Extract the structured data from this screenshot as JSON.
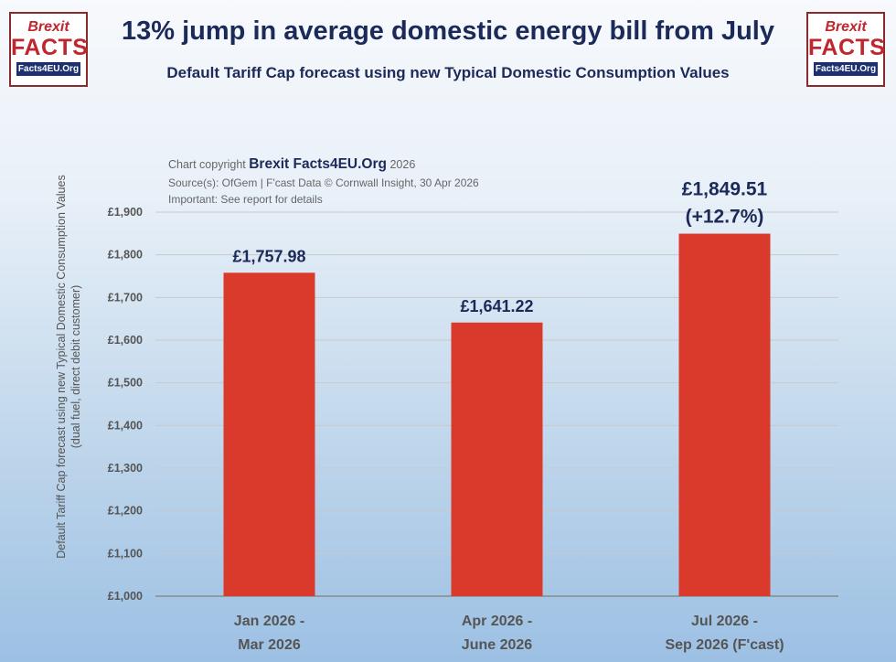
{
  "header": {
    "title": "13% jump in average domestic energy bill from July",
    "subtitle": "Default Tariff Cap forecast using new Typical Domestic Consumption Values"
  },
  "logo": {
    "line1": "Brexit",
    "line2": "FACTS",
    "line3": "Facts4EU.Org"
  },
  "credits": {
    "line1_prefix": "Chart copyright ",
    "line1_brand": "Brexit Facts4EU.Org",
    "line1_suffix": " 2026",
    "line2": "Source(s): OfGem | F'cast Data © Cornwall Insight, 30 Apr 2026",
    "line3": "Important: See report for details"
  },
  "colors": {
    "bar": "#d93a2b",
    "text": "#1c2a5a",
    "brand_red": "#c0262d"
  },
  "chart_data": {
    "type": "bar",
    "title": "13% jump in average domestic energy bill from July",
    "ylabel_line1": "Default Tariff Cap forecast using new Typical Domestic Consumption Values",
    "ylabel_line2": "(dual fuel, direct debit customer)",
    "ylim": [
      1000,
      1900
    ],
    "yticks": [
      1000,
      1100,
      1200,
      1300,
      1400,
      1500,
      1600,
      1700,
      1800,
      1900
    ],
    "ytick_labels": [
      "£1,000",
      "£1,100",
      "£1,200",
      "£1,300",
      "£1,400",
      "£1,500",
      "£1,600",
      "£1,700",
      "£1,800",
      "£1,900"
    ],
    "categories": [
      [
        "Jan 2026 -",
        "Mar 2026"
      ],
      [
        "Apr 2026 -",
        "June 2026"
      ],
      [
        "Jul 2026 -",
        "Sep 2026 (F'cast)"
      ]
    ],
    "values": [
      1757.98,
      1641.22,
      1849.51
    ],
    "data_labels": [
      [
        "£1,757.98"
      ],
      [
        "£1,641.22"
      ],
      [
        "£1,849.51",
        "(+12.7%)"
      ]
    ],
    "grid": true
  }
}
